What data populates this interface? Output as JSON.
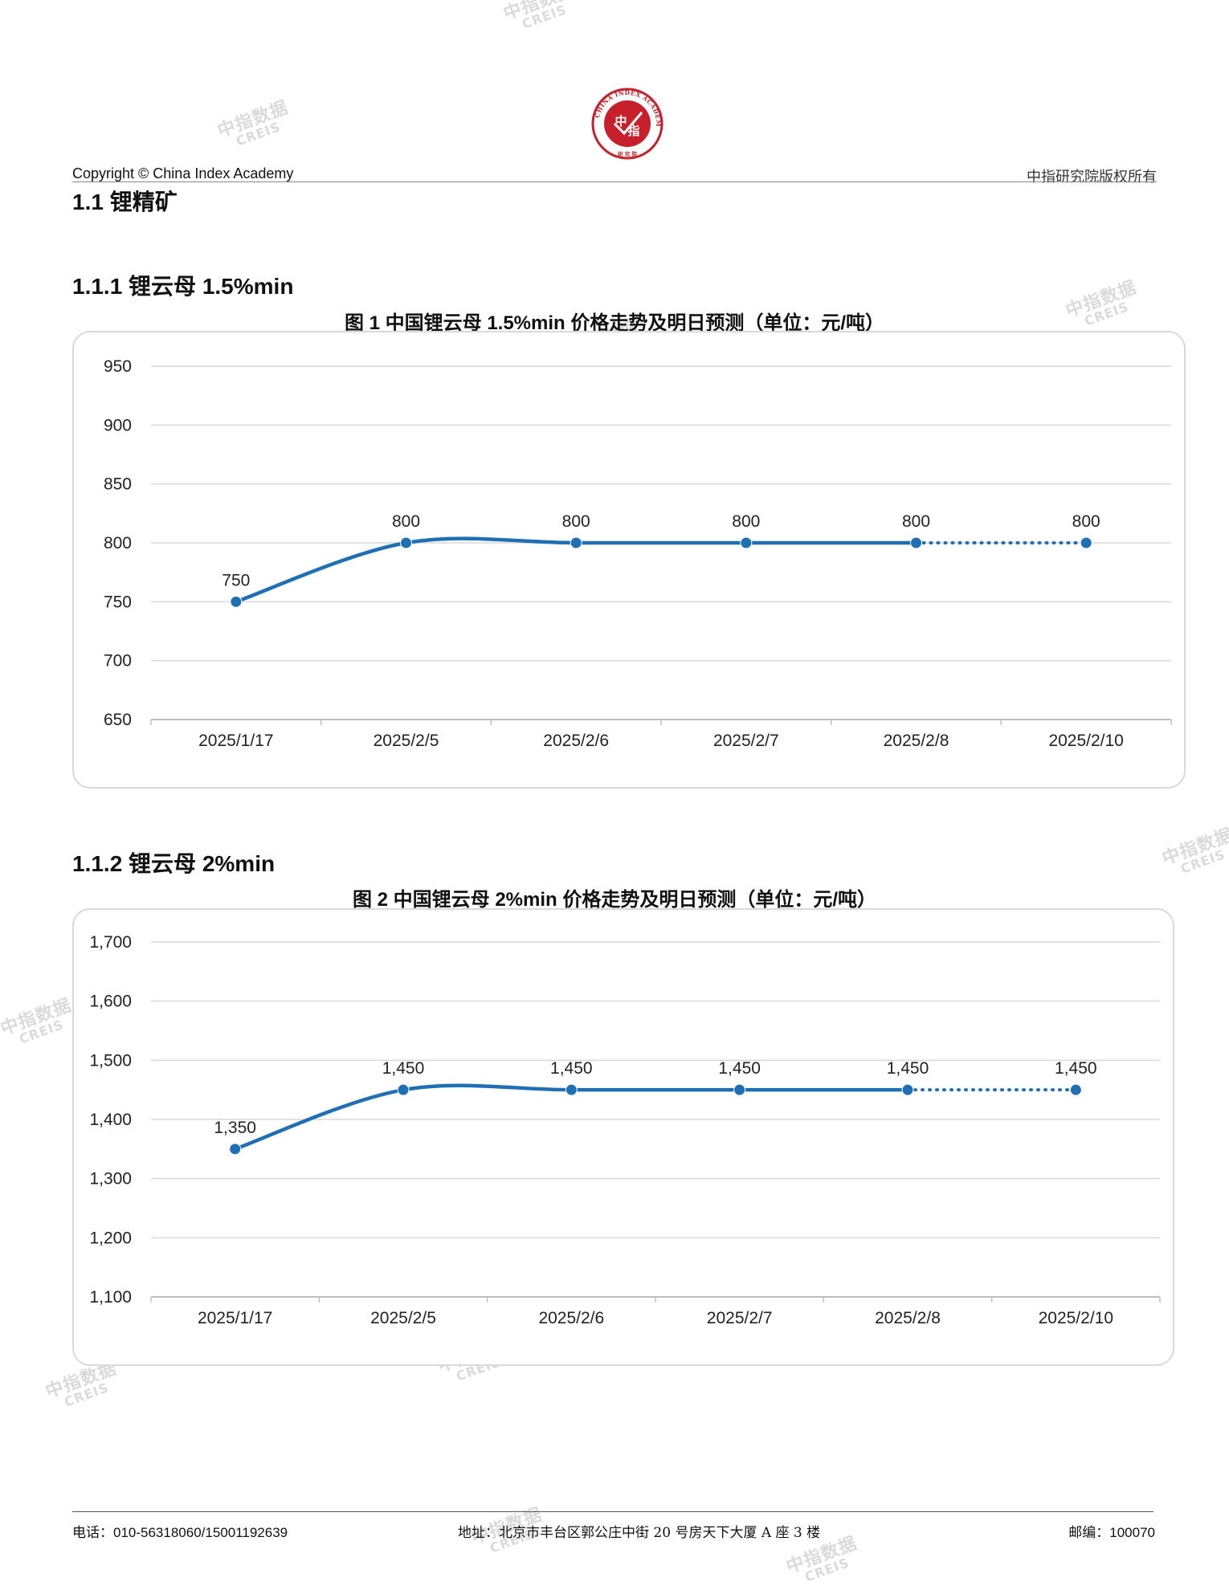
{
  "header": {
    "copyright": "Copyright © China Index Academy",
    "rights": "中指研究院版权所有",
    "logo": {
      "ring_text": "CHINA INDEX ACADEMY",
      "center_text_top": "中",
      "center_text_bottom": "指",
      "sub_text": "研 究 院"
    }
  },
  "sections": {
    "s1_title": "1.1 锂精矿",
    "s111_title": "1.1.1 锂云母 1.5%min",
    "s112_title": "1.1.2 锂云母 2%min"
  },
  "watermark": {
    "cn": "中指数据",
    "en": "CREIS"
  },
  "chart_data": [
    {
      "type": "line",
      "title": "图 1 中国锂云母 1.5%min 价格走势及明日预测（单位：元/吨）",
      "categories": [
        "2025/1/17",
        "2025/2/5",
        "2025/2/6",
        "2025/2/7",
        "2025/2/8",
        "2025/2/10"
      ],
      "values": [
        750,
        800,
        800,
        800,
        800,
        800
      ],
      "labels": [
        "750",
        "800",
        "800",
        "800",
        "800",
        "800"
      ],
      "forecast_from_index": 4,
      "ylim": [
        650,
        950
      ],
      "yticks": [
        650,
        700,
        750,
        800,
        850,
        900,
        950
      ],
      "ytick_labels": [
        "650",
        "700",
        "750",
        "800",
        "850",
        "900",
        "950"
      ],
      "grid": true,
      "color": "#1f6fb5"
    },
    {
      "type": "line",
      "title": "图 2 中国锂云母 2%min 价格走势及明日预测（单位：元/吨）",
      "categories": [
        "2025/1/17",
        "2025/2/5",
        "2025/2/6",
        "2025/2/7",
        "2025/2/8",
        "2025/2/10"
      ],
      "values": [
        1350,
        1450,
        1450,
        1450,
        1450,
        1450
      ],
      "labels": [
        "1,350",
        "1,450",
        "1,450",
        "1,450",
        "1,450",
        "1,450"
      ],
      "forecast_from_index": 4,
      "ylim": [
        1100,
        1700
      ],
      "yticks": [
        1100,
        1200,
        1300,
        1400,
        1500,
        1600,
        1700
      ],
      "ytick_labels": [
        "1,100",
        "1,200",
        "1,300",
        "1,400",
        "1,500",
        "1,600",
        "1,700"
      ],
      "grid": true,
      "color": "#1f6fb5"
    }
  ],
  "footer": {
    "phone": "电话：010-56318060/15001192639",
    "address": "地址：北京市丰台区郭公庄中街 20 号房天下大厦 A 座 3 楼",
    "postcode": "邮编：100070"
  }
}
